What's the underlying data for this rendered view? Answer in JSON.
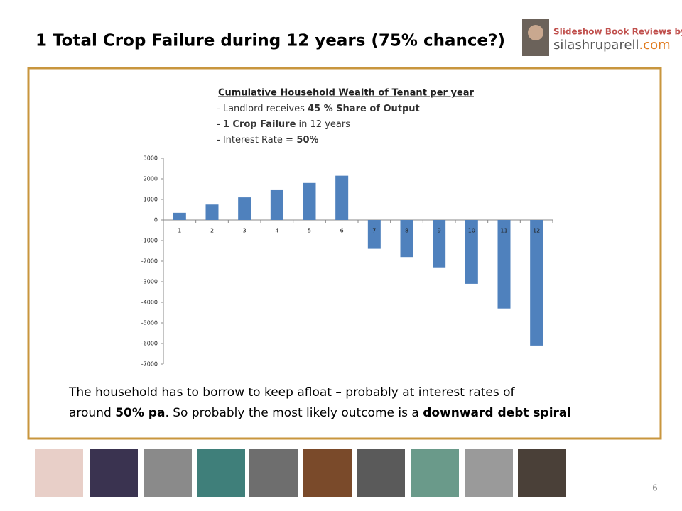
{
  "slide": {
    "title": "1 Total Crop Failure during 12 years (75% chance?)",
    "logo": {
      "line1": "Slideshow Book Reviews by",
      "site_name": "silashruparell",
      "site_domain": ".com"
    },
    "caption": {
      "line1": "The household has to borrow to keep afloat – probably at interest rates of",
      "line2_parts": [
        "around ",
        "50% pa",
        ". So probably the most likely outcome is a ",
        "downward debt spiral"
      ]
    },
    "page_number": "6"
  },
  "chart_data": {
    "type": "bar",
    "title": "Cumulative Household  Wealth of Tenant per year",
    "subtitle_lines": [
      [
        "- Landlord receives ",
        "45 % Share of Output"
      ],
      [
        "- ",
        "1 Crop Failure",
        " in 12 years"
      ],
      [
        "- Interest  Rate ",
        "= 50%"
      ]
    ],
    "categories": [
      "1",
      "2",
      "3",
      "4",
      "5",
      "6",
      "7",
      "8",
      "9",
      "10",
      "11",
      "12"
    ],
    "values": [
      350,
      750,
      1100,
      1450,
      1800,
      2150,
      -1400,
      -1800,
      -2300,
      -3100,
      -4300,
      -6100
    ],
    "color": "#4f81bd",
    "ylim": [
      -7000,
      3000
    ],
    "yticks": [
      -7000,
      -6000,
      -5000,
      -4000,
      -3000,
      -2000,
      -1000,
      0,
      1000,
      2000,
      3000
    ]
  }
}
